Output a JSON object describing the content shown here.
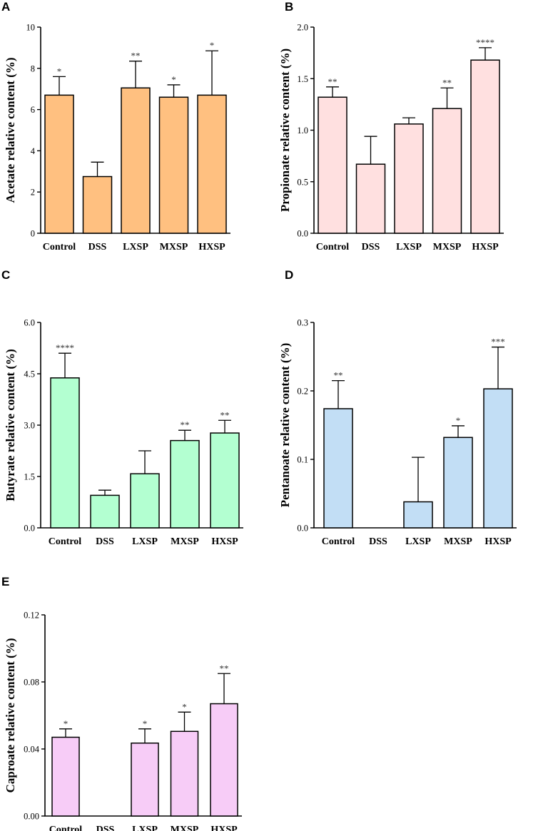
{
  "chart_data": [
    {
      "panel": "A",
      "type": "bar",
      "ylabel": "Acetate relative content (%)",
      "categories": [
        "Control",
        "DSS",
        "LXSP",
        "MXSP",
        "HXSP"
      ],
      "values": [
        6.7,
        2.75,
        7.05,
        6.6,
        6.7
      ],
      "errors": [
        0.9,
        0.7,
        1.3,
        0.6,
        2.15
      ],
      "significance": [
        "*",
        "",
        "**",
        "*",
        "*"
      ],
      "ylim": [
        0,
        10
      ],
      "yticks": [
        "0",
        "2",
        "4",
        "6",
        "8",
        "10"
      ],
      "color": "#FFC080"
    },
    {
      "panel": "B",
      "type": "bar",
      "ylabel": "Propionate relative content (%)",
      "categories": [
        "Control",
        "DSS",
        "LXSP",
        "MXSP",
        "HXSP"
      ],
      "values": [
        1.32,
        0.67,
        1.06,
        1.21,
        1.68
      ],
      "errors": [
        0.1,
        0.27,
        0.06,
        0.2,
        0.12
      ],
      "significance": [
        "**",
        "",
        "",
        "**",
        "****"
      ],
      "ylim": [
        0,
        2.0
      ],
      "yticks": [
        "0.0",
        "0.5",
        "1.0",
        "1.5",
        "2.0"
      ],
      "color": "#FFE0E0"
    },
    {
      "panel": "C",
      "type": "bar",
      "ylabel": "Butyrate relative content (%)",
      "categories": [
        "Control",
        "DSS",
        "LXSP",
        "MXSP",
        "HXSP"
      ],
      "values": [
        4.38,
        0.95,
        1.58,
        2.55,
        2.77
      ],
      "errors": [
        0.72,
        0.15,
        0.67,
        0.3,
        0.37
      ],
      "significance": [
        "****",
        "",
        "",
        "**",
        "**"
      ],
      "ylim": [
        0,
        6.0
      ],
      "yticks": [
        "0.0",
        "1.5",
        "3.0",
        "4.5",
        "6.0"
      ],
      "color": "#B3FFD1"
    },
    {
      "panel": "D",
      "type": "bar",
      "ylabel": "Pentanoate relative content (%)",
      "categories": [
        "Control",
        "DSS",
        "LXSP",
        "MXSP",
        "HXSP"
      ],
      "values": [
        0.174,
        0.0,
        0.038,
        0.132,
        0.203
      ],
      "errors": [
        0.041,
        0.0,
        0.065,
        0.017,
        0.061
      ],
      "significance": [
        "**",
        "",
        "",
        "*",
        "***"
      ],
      "ylim": [
        0,
        0.3
      ],
      "yticks": [
        "0.0",
        "0.1",
        "0.2",
        "0.3"
      ],
      "color": "#C2DEF5"
    },
    {
      "panel": "E",
      "type": "bar",
      "ylabel": "Caproate relative content (%)",
      "categories": [
        "Control",
        "DSS",
        "LXSP",
        "MXSP",
        "HXSP"
      ],
      "values": [
        0.047,
        0.0,
        0.0435,
        0.0505,
        0.067
      ],
      "errors": [
        0.005,
        0.0,
        0.0085,
        0.0115,
        0.018
      ],
      "significance": [
        "*",
        "",
        "*",
        "*",
        "**"
      ],
      "ylim": [
        0,
        0.12
      ],
      "yticks": [
        "0.00",
        "0.04",
        "0.08",
        "0.12"
      ],
      "color": "#F7CCF7"
    }
  ]
}
